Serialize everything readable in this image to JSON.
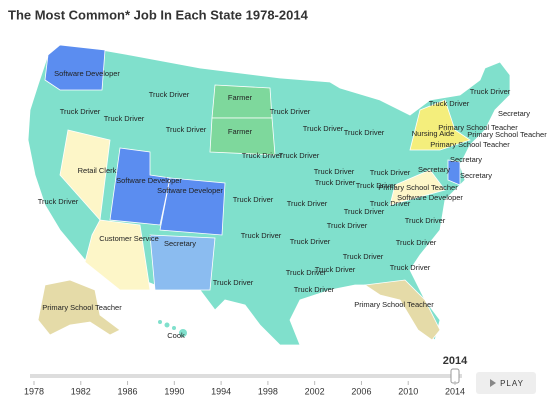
{
  "header": {
    "title": "The Most Common* Job In Each State 1978-2014"
  },
  "map": {
    "labels": [
      "Software Developer",
      "Truck Driver",
      "Truck Driver",
      "Truck Driver",
      "Farmer",
      "Farmer",
      "Truck Driver",
      "Truck Driver",
      "Truck Driver",
      "Truck Driver",
      "Retail Clerk",
      "Software Developer",
      "Software Developer",
      "Truck Driver",
      "Truck Driver",
      "Truck Driver",
      "Truck Driver",
      "Truck Driver",
      "Truck Driver",
      "Truck Driver",
      "Truck Driver",
      "Truck Driver",
      "Customer Service",
      "Secretary",
      "Truck Driver",
      "Truck Driver",
      "Truck Driver",
      "Truck Driver",
      "Truck Driver",
      "Truck Driver",
      "Truck Driver",
      "Truck Driver",
      "Truck Driver",
      "Truck Driver",
      "Truck Driver",
      "Truck Driver",
      "Primary School Teacher",
      "Primary School Teacher",
      "Cook",
      "Truck Driver",
      "Truck Driver",
      "Nursing Aide",
      "Primary School Teacher",
      "Primary School Teacher",
      "Primary School Teacher",
      "Secretary",
      "Secretary",
      "Secretary",
      "Primary School Teacher",
      "Software Developer",
      "Secretary",
      "Truck Driver"
    ]
  },
  "timeline": {
    "years": [
      "1978",
      "1982",
      "1986",
      "1990",
      "1994",
      "1998",
      "2002",
      "2006",
      "2010",
      "2014"
    ],
    "current": "2014",
    "button": "PLAY"
  }
}
